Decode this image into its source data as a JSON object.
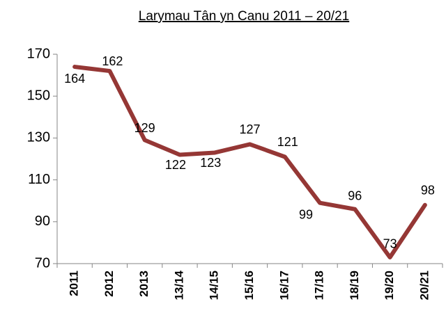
{
  "chart_data": {
    "type": "line",
    "title": "Larymau Tân yn Canu 2011 – 20/21",
    "categories": [
      "2011",
      "2012",
      "2013",
      "13/14",
      "14/15",
      "15/16",
      "16/17",
      "17/18",
      "18/19",
      "19/20",
      "20/21"
    ],
    "series": [
      {
        "name": "Larymau Tân yn Canu",
        "color": "#953735",
        "values": [
          164,
          162,
          129,
          122,
          123,
          127,
          121,
          99,
          96,
          73,
          98
        ]
      }
    ],
    "ylim": [
      70,
      170
    ],
    "yticks": [
      70,
      90,
      110,
      130,
      150,
      170
    ],
    "grid": false
  }
}
